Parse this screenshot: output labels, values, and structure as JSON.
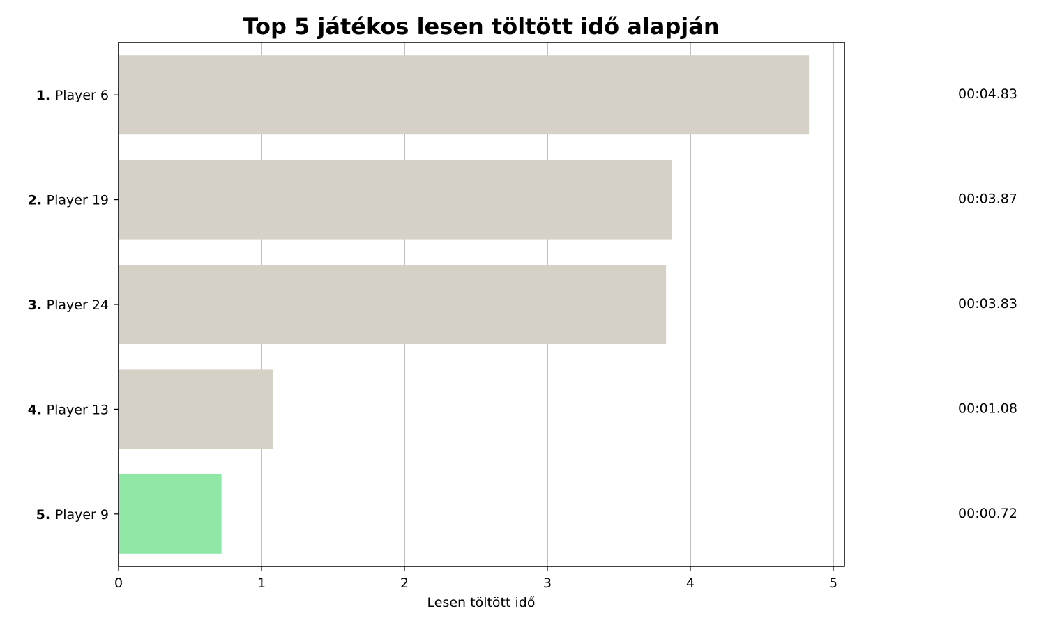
{
  "chart_data": {
    "type": "bar",
    "orientation": "horizontal",
    "title": "Top 5 játékos lesen töltött idő alapján",
    "xlabel": "Lesen töltött idő",
    "ylabel": "",
    "xlim": [
      0,
      5.08
    ],
    "x_ticks": [
      "0",
      "1",
      "2",
      "3",
      "4",
      "5"
    ],
    "grid": "vertical",
    "categories": [
      {
        "rank": "1.",
        "name": "Player 6"
      },
      {
        "rank": "2.",
        "name": "Player 19"
      },
      {
        "rank": "3.",
        "name": "Player 24"
      },
      {
        "rank": "4.",
        "name": "Player 13"
      },
      {
        "rank": "5.",
        "name": "Player 9"
      }
    ],
    "values": [
      4.83,
      3.87,
      3.83,
      1.08,
      0.72
    ],
    "value_labels": [
      "00:04.83",
      "00:03.87",
      "00:03.83",
      "00:01.08",
      "00:00.72"
    ],
    "colors": [
      "#d5d1c6",
      "#d5d1c6",
      "#d5d1c6",
      "#d5d1c6",
      "#8fe8a6"
    ]
  }
}
